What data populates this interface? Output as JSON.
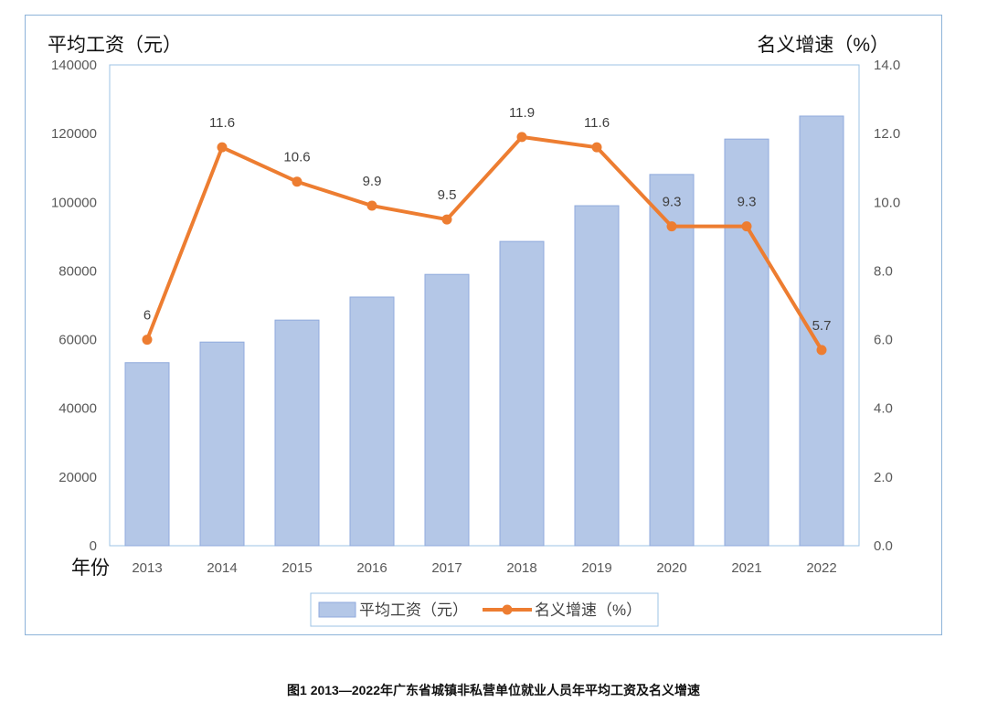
{
  "chart_data": {
    "type": "bar+line",
    "categories": [
      "2013",
      "2014",
      "2015",
      "2016",
      "2017",
      "2018",
      "2019",
      "2020",
      "2021",
      "2022"
    ],
    "series": [
      {
        "name": "平均工资（元）",
        "type": "bar",
        "axis": "left",
        "color": "#b4c7e7",
        "values": [
          53300,
          59300,
          65700,
          72400,
          79000,
          88600,
          99000,
          108100,
          118400,
          125100
        ]
      },
      {
        "name": "名义增速（%）",
        "type": "line",
        "axis": "right",
        "color": "#ed7d31",
        "values": [
          6,
          11.6,
          10.6,
          9.9,
          9.5,
          11.9,
          11.6,
          9.3,
          9.3,
          5.7
        ],
        "labels": [
          "6",
          "11.6",
          "10.6",
          "9.9",
          "9.5",
          "11.9",
          "11.6",
          "9.3",
          "9.3",
          "5.7"
        ]
      }
    ],
    "ylabel_left": "平均工资（元）",
    "ylabel_right": "名义增速（%）",
    "xlabel": "年份",
    "ylim_left": [
      0,
      140000
    ],
    "ylim_right": [
      0,
      14
    ],
    "yticks_left": [
      "0",
      "20000",
      "40000",
      "60000",
      "80000",
      "100000",
      "120000",
      "140000"
    ],
    "yticks_right": [
      "0.0",
      "2.0",
      "4.0",
      "6.0",
      "8.0",
      "10.0",
      "12.0",
      "14.0"
    ],
    "grid": false,
    "legend": "bottom",
    "caption": "图1  2013—2022年广东省城镇非私营单位就业人员年平均工资及名义增速"
  }
}
